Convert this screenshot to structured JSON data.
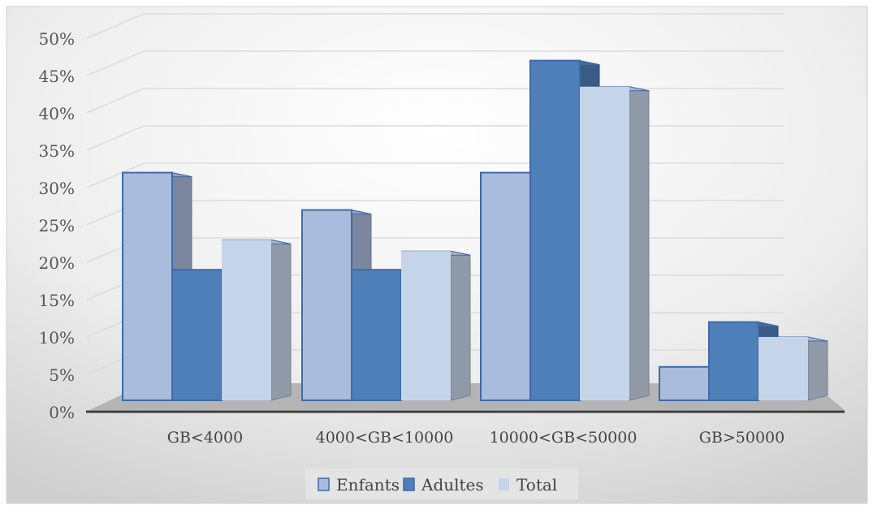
{
  "chart_data": {
    "type": "bar",
    "categories": [
      "GB<4000",
      "4000<GB<10000",
      "10000<GB<50000",
      "GB>50000"
    ],
    "series": [
      {
        "name": "Enfants",
        "values": [
          32,
          27,
          32,
          6
        ]
      },
      {
        "name": "Adultes",
        "values": [
          19,
          19,
          47,
          12
        ]
      },
      {
        "name": "Total",
        "values": [
          23,
          21.5,
          43.5,
          10
        ]
      }
    ],
    "ylim": [
      0,
      50
    ],
    "yticks": [
      "0%",
      "5%",
      "10%",
      "15%",
      "20%",
      "25%",
      "30%",
      "35%",
      "40%",
      "45%",
      "50%"
    ],
    "grid": true,
    "legend_position": "bottom",
    "colors": {
      "Enfants": "#a9bcdb",
      "Adultes": "#4f7fb8",
      "Total": "#c6d4ea",
      "edge": "#3f6aa8"
    }
  }
}
